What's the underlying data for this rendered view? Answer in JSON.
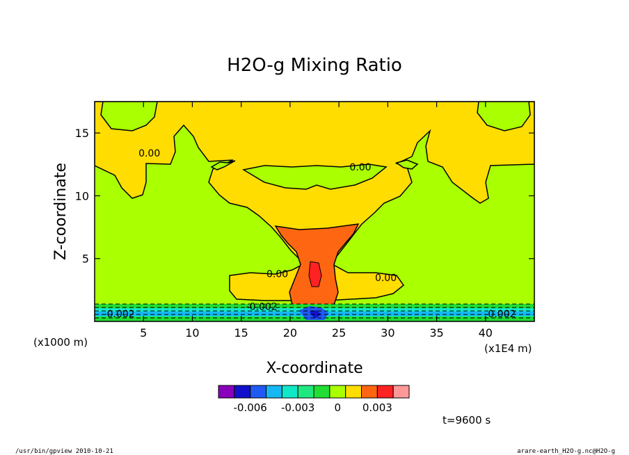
{
  "chart_data": {
    "type": "contour",
    "title": "H2O-g Mixing Ratio",
    "xlabel": "X-coordinate",
    "ylabel": "Z-coordinate",
    "x_unit": "(x1E4 m)",
    "y_unit": "(x1000 m)",
    "xlim": [
      0,
      45
    ],
    "ylim": [
      0,
      17.5
    ],
    "x_ticks": [
      5,
      10,
      15,
      20,
      25,
      30,
      35,
      40
    ],
    "y_ticks": [
      5,
      10,
      15
    ],
    "contour_labels": [
      {
        "text": "0.00",
        "x": 5.6,
        "y": 13.4
      },
      {
        "text": "0.00",
        "x": 27.2,
        "y": 12.3
      },
      {
        "text": "0.00",
        "x": 18.7,
        "y": 3.8
      },
      {
        "text": "0.00",
        "x": 29.8,
        "y": 3.5
      },
      {
        "text": "-0.002",
        "x": 17.1,
        "y": 1.2
      },
      {
        "text": "-0.002",
        "x": 2.5,
        "y": 0.6
      },
      {
        "text": "-0.002",
        "x": 41.5,
        "y": 0.6
      }
    ],
    "colorbar": {
      "colors": [
        "#8800bb",
        "#1111cc",
        "#1f5af2",
        "#15b8f2",
        "#10e8c8",
        "#20e880",
        "#22dd33",
        "#aaff00",
        "#ffdd00",
        "#ff6611",
        "#ff2222",
        "#ff9999"
      ],
      "tick_labels": [
        "-0.006",
        "-0.003",
        "0",
        "0.003"
      ]
    },
    "annotation": "t=9600 s"
  },
  "footer": {
    "left": "/usr/bin/gpview  2010-10-21",
    "right": "arare-earth_H2O-g.nc@H2O-g"
  }
}
